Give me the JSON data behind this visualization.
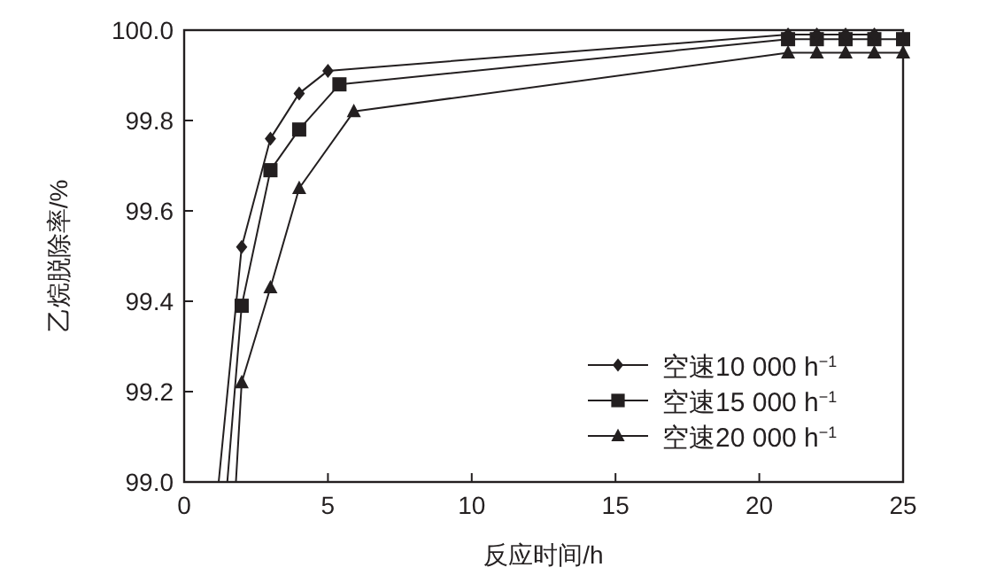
{
  "chart_data": {
    "type": "line",
    "xlabel": "反应时间/h",
    "ylabel": "乙烷脱除率/%",
    "xlim": [
      0,
      25
    ],
    "xticks": [
      0,
      5,
      10,
      15,
      20,
      25
    ],
    "ylim": [
      99.0,
      100.0
    ],
    "yticks": [
      {
        "value": 99.0,
        "label": "99.0"
      },
      {
        "value": 99.2,
        "label": "99.2"
      },
      {
        "value": 99.4,
        "label": "99.4"
      },
      {
        "value": 99.6,
        "label": "99.6"
      },
      {
        "value": 99.8,
        "label": "99.8"
      },
      {
        "value": 100.0,
        "label": "100.0"
      }
    ],
    "legend": "bottom right",
    "grid": false,
    "series": [
      {
        "name": "空速10 000 h$^{−1}$",
        "color": "#231f20",
        "marker": "diamond",
        "x": [
          1.2,
          2,
          3,
          4,
          5,
          21,
          22,
          23,
          24
        ],
        "values": [
          99.0,
          99.52,
          99.76,
          99.86,
          99.91,
          99.99,
          99.99,
          99.99,
          99.99
        ]
      },
      {
        "name": "空速15 000 h$^{−1}$",
        "color": "#231f20",
        "marker": "square",
        "x": [
          1.5,
          2,
          3,
          4,
          5.4,
          21,
          22,
          23,
          24,
          25
        ],
        "values": [
          99.0,
          99.39,
          99.69,
          99.78,
          99.88,
          99.98,
          99.98,
          99.98,
          99.98,
          99.98
        ]
      },
      {
        "name": "空速20 000 h$^{−1}$",
        "color": "#231f20",
        "marker": "triangle",
        "x": [
          1.8,
          2,
          3,
          4,
          5.9,
          21,
          22,
          23,
          24,
          25
        ],
        "values": [
          99.0,
          99.22,
          99.43,
          99.65,
          99.82,
          99.95,
          99.95,
          99.95,
          99.95,
          99.95
        ]
      }
    ]
  }
}
